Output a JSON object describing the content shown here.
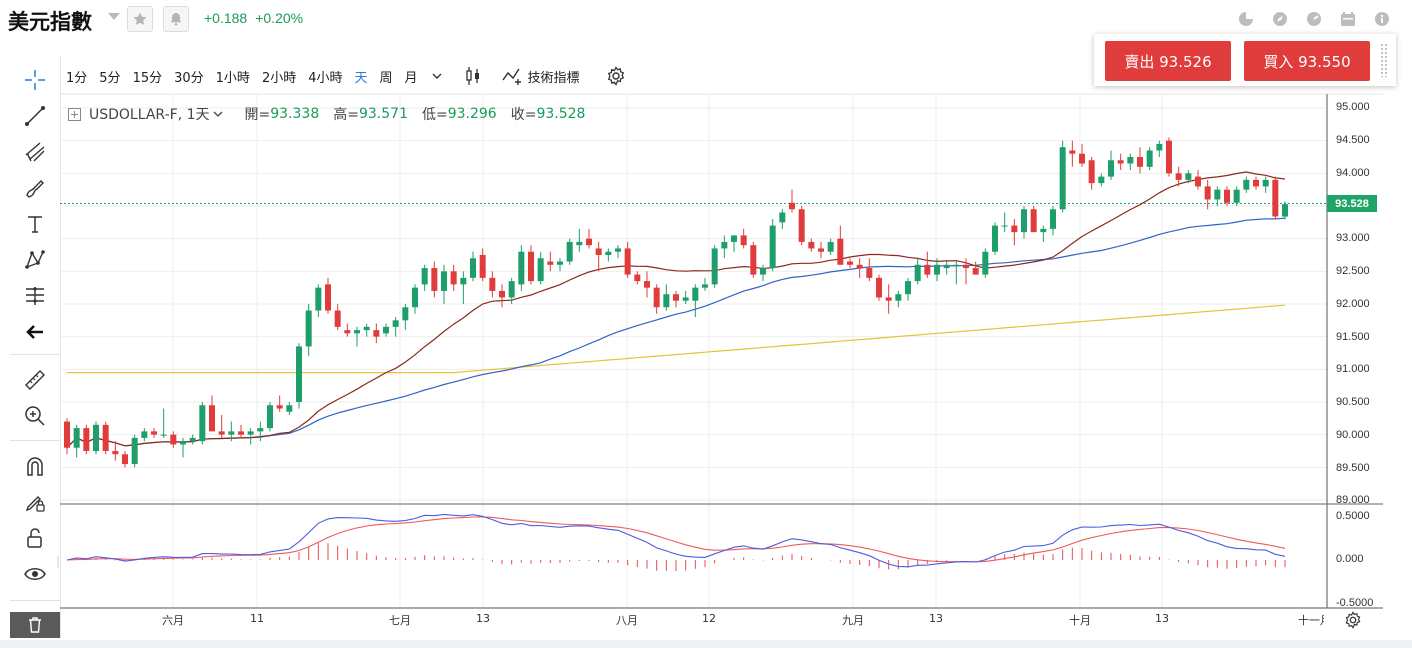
{
  "header": {
    "title": "美元指數",
    "change_abs": "+0.188",
    "change_pct": "+0.20%"
  },
  "trade": {
    "sell_label": "賣出 93.526",
    "buy_label": "買入 93.550"
  },
  "toolbar": {
    "timeframes": [
      "1分",
      "5分",
      "15分",
      "30分",
      "1小時",
      "2小時",
      "4小時",
      "天",
      "周",
      "月"
    ],
    "active_timeframe": "天",
    "indicators_label": "技術指標"
  },
  "legend": {
    "symbol": "USDOLLAR-F, 1天",
    "open_label": "開=",
    "open": "93.338",
    "high_label": "高=",
    "high": "93.571",
    "low_label": "低=",
    "low": "93.296",
    "close_label": "收=",
    "close": "93.528"
  },
  "price_axis": [
    "95.000",
    "94.500",
    "94.000",
    "93.500",
    "93.000",
    "92.500",
    "92.000",
    "91.500",
    "91.000",
    "90.500",
    "90.000",
    "89.500",
    "89.000"
  ],
  "macd_axis": [
    "0.5000",
    "0.000",
    "-0.5000"
  ],
  "time_axis": [
    "六月",
    "11",
    "七月",
    "13",
    "八月",
    "12",
    "九月",
    "13",
    "十月",
    "13",
    "十一月"
  ],
  "last_price": "93.528",
  "colors": {
    "up": "#1e9e6a",
    "down": "#e03c3c",
    "ma_short": "#8b2a1a",
    "ma_mid": "#2f64c8",
    "ma_long": "#e6c23a",
    "macd": "#4a5ee0",
    "signal": "#f05a5a"
  },
  "chart_data": {
    "type": "candlestick",
    "symbol": "USDOLLAR-F",
    "interval": "1天",
    "ylim": [
      89.0,
      95.0
    ],
    "candles": [
      [
        90.2,
        90.25,
        89.7,
        89.8
      ],
      [
        89.8,
        90.15,
        89.65,
        90.1
      ],
      [
        90.1,
        90.15,
        89.7,
        89.75
      ],
      [
        89.75,
        90.2,
        89.7,
        90.15
      ],
      [
        90.15,
        90.2,
        89.7,
        89.75
      ],
      [
        89.75,
        89.9,
        89.6,
        89.7
      ],
      [
        89.7,
        89.75,
        89.5,
        89.55
      ],
      [
        89.55,
        90.0,
        89.5,
        89.95
      ],
      [
        89.95,
        90.1,
        89.9,
        90.05
      ],
      [
        90.05,
        90.1,
        89.95,
        90.0
      ],
      [
        90.0,
        90.4,
        89.95,
        90.0
      ],
      [
        90.0,
        90.05,
        89.8,
        89.85
      ],
      [
        89.85,
        89.95,
        89.65,
        89.9
      ],
      [
        89.9,
        90.0,
        89.85,
        89.95
      ],
      [
        89.9,
        90.5,
        89.85,
        90.45
      ],
      [
        90.45,
        90.6,
        90.1,
        90.05
      ],
      [
        90.05,
        90.3,
        89.95,
        90.0
      ],
      [
        90.0,
        90.2,
        89.9,
        90.05
      ],
      [
        90.05,
        90.15,
        89.95,
        90.0
      ],
      [
        90.0,
        90.1,
        89.85,
        90.05
      ],
      [
        90.05,
        90.2,
        89.9,
        90.1
      ],
      [
        90.1,
        90.5,
        90.05,
        90.45
      ],
      [
        90.45,
        90.6,
        90.35,
        90.4
      ],
      [
        90.35,
        90.5,
        90.3,
        90.45
      ],
      [
        90.5,
        91.4,
        90.4,
        91.35
      ],
      [
        91.35,
        92.0,
        91.2,
        91.9
      ],
      [
        91.9,
        92.3,
        91.8,
        92.25
      ],
      [
        92.3,
        92.4,
        91.85,
        91.9
      ],
      [
        91.9,
        92.0,
        91.6,
        91.65
      ],
      [
        91.6,
        91.7,
        91.5,
        91.55
      ],
      [
        91.55,
        91.65,
        91.35,
        91.6
      ],
      [
        91.6,
        91.7,
        91.5,
        91.65
      ],
      [
        91.6,
        91.7,
        91.4,
        91.5
      ],
      [
        91.55,
        91.7,
        91.5,
        91.65
      ],
      [
        91.65,
        91.8,
        91.5,
        91.75
      ],
      [
        91.75,
        92.0,
        91.6,
        91.95
      ],
      [
        91.95,
        92.3,
        91.85,
        92.25
      ],
      [
        92.3,
        92.6,
        92.2,
        92.55
      ],
      [
        92.55,
        92.65,
        92.1,
        92.2
      ],
      [
        92.2,
        92.6,
        92.0,
        92.5
      ],
      [
        92.5,
        92.6,
        92.2,
        92.3
      ],
      [
        92.3,
        92.5,
        92.0,
        92.4
      ],
      [
        92.4,
        92.8,
        92.35,
        92.7
      ],
      [
        92.75,
        92.85,
        92.35,
        92.4
      ],
      [
        92.4,
        92.5,
        92.1,
        92.2
      ],
      [
        92.2,
        92.3,
        91.95,
        92.1
      ],
      [
        92.1,
        92.4,
        92.0,
        92.35
      ],
      [
        92.3,
        92.9,
        92.2,
        92.8
      ],
      [
        92.8,
        92.9,
        92.3,
        92.35
      ],
      [
        92.35,
        92.8,
        92.3,
        92.7
      ],
      [
        92.65,
        92.8,
        92.5,
        92.6
      ],
      [
        92.6,
        92.7,
        92.5,
        92.65
      ],
      [
        92.65,
        93.0,
        92.6,
        92.95
      ],
      [
        92.9,
        93.15,
        92.8,
        92.95
      ],
      [
        93.0,
        93.15,
        92.85,
        92.9
      ],
      [
        92.85,
        92.95,
        92.5,
        92.75
      ],
      [
        92.75,
        92.85,
        92.65,
        92.8
      ],
      [
        92.8,
        92.9,
        92.7,
        92.85
      ],
      [
        92.85,
        92.95,
        92.4,
        92.45
      ],
      [
        92.45,
        92.5,
        92.3,
        92.35
      ],
      [
        92.35,
        92.5,
        92.1,
        92.25
      ],
      [
        92.25,
        92.3,
        91.85,
        91.95
      ],
      [
        91.95,
        92.3,
        91.9,
        92.15
      ],
      [
        92.15,
        92.2,
        91.95,
        92.05
      ],
      [
        92.05,
        92.2,
        92.0,
        92.1
      ],
      [
        92.05,
        92.3,
        91.8,
        92.25
      ],
      [
        92.25,
        92.4,
        92.2,
        92.3
      ],
      [
        92.3,
        92.9,
        92.25,
        92.85
      ],
      [
        92.85,
        93.05,
        92.7,
        92.95
      ],
      [
        92.95,
        93.05,
        92.8,
        93.05
      ],
      [
        93.05,
        93.15,
        92.85,
        92.9
      ],
      [
        92.9,
        92.95,
        92.4,
        92.45
      ],
      [
        92.45,
        92.6,
        92.35,
        92.55
      ],
      [
        92.55,
        93.3,
        92.5,
        93.2
      ],
      [
        93.25,
        93.45,
        93.15,
        93.4
      ],
      [
        93.55,
        93.75,
        93.4,
        93.45
      ],
      [
        93.45,
        93.5,
        92.9,
        92.95
      ],
      [
        92.95,
        93.0,
        92.8,
        92.85
      ],
      [
        92.85,
        92.95,
        92.7,
        92.8
      ],
      [
        92.8,
        93.0,
        92.75,
        92.95
      ],
      [
        93.0,
        93.2,
        92.6,
        92.6
      ],
      [
        92.65,
        92.7,
        92.55,
        92.6
      ],
      [
        92.6,
        92.7,
        92.4,
        92.55
      ],
      [
        92.55,
        92.7,
        92.35,
        92.4
      ],
      [
        92.4,
        92.45,
        92.05,
        92.1
      ],
      [
        92.1,
        92.3,
        91.85,
        92.05
      ],
      [
        92.05,
        92.2,
        91.95,
        92.15
      ],
      [
        92.15,
        92.4,
        92.05,
        92.35
      ],
      [
        92.35,
        92.7,
        92.3,
        92.6
      ],
      [
        92.6,
        92.8,
        92.4,
        92.45
      ],
      [
        92.45,
        92.7,
        92.35,
        92.6
      ],
      [
        92.55,
        92.65,
        92.45,
        92.6
      ],
      [
        92.6,
        92.65,
        92.3,
        92.6
      ],
      [
        92.6,
        92.7,
        92.3,
        92.55
      ],
      [
        92.55,
        92.65,
        92.45,
        92.45
      ],
      [
        92.45,
        92.85,
        92.4,
        92.8
      ],
      [
        92.8,
        93.25,
        92.75,
        93.2
      ],
      [
        93.2,
        93.4,
        93.1,
        93.2
      ],
      [
        93.2,
        93.3,
        92.9,
        93.1
      ],
      [
        93.1,
        93.5,
        93.0,
        93.45
      ],
      [
        93.45,
        93.5,
        93.1,
        93.1
      ],
      [
        93.1,
        93.2,
        92.95,
        93.15
      ],
      [
        93.15,
        93.5,
        93.05,
        93.45
      ],
      [
        93.45,
        94.5,
        93.4,
        94.4
      ],
      [
        94.35,
        94.5,
        94.1,
        94.3
      ],
      [
        94.3,
        94.45,
        94.1,
        94.15
      ],
      [
        94.2,
        94.25,
        93.75,
        93.85
      ],
      [
        93.85,
        94.0,
        93.8,
        93.95
      ],
      [
        93.95,
        94.35,
        93.9,
        94.2
      ],
      [
        94.2,
        94.3,
        94.05,
        94.15
      ],
      [
        94.15,
        94.3,
        94.05,
        94.25
      ],
      [
        94.25,
        94.4,
        94.0,
        94.1
      ],
      [
        94.1,
        94.4,
        94.05,
        94.35
      ],
      [
        94.35,
        94.5,
        94.25,
        94.45
      ],
      [
        94.5,
        94.55,
        93.95,
        94.0
      ],
      [
        94.0,
        94.1,
        93.8,
        93.9
      ],
      [
        93.9,
        94.05,
        93.85,
        94.0
      ],
      [
        93.95,
        94.05,
        93.75,
        93.8
      ],
      [
        93.8,
        93.9,
        93.45,
        93.6
      ],
      [
        93.6,
        93.8,
        93.5,
        93.75
      ],
      [
        93.75,
        93.8,
        93.5,
        93.55
      ],
      [
        93.55,
        93.8,
        93.5,
        93.75
      ],
      [
        93.75,
        93.95,
        93.7,
        93.9
      ],
      [
        93.9,
        93.95,
        93.75,
        93.8
      ],
      [
        93.8,
        93.95,
        93.7,
        93.9
      ],
      [
        93.9,
        93.95,
        93.3,
        93.34
      ],
      [
        93.338,
        93.571,
        93.296,
        93.528
      ]
    ],
    "macd_ylim": [
      -0.5,
      0.5
    ]
  }
}
